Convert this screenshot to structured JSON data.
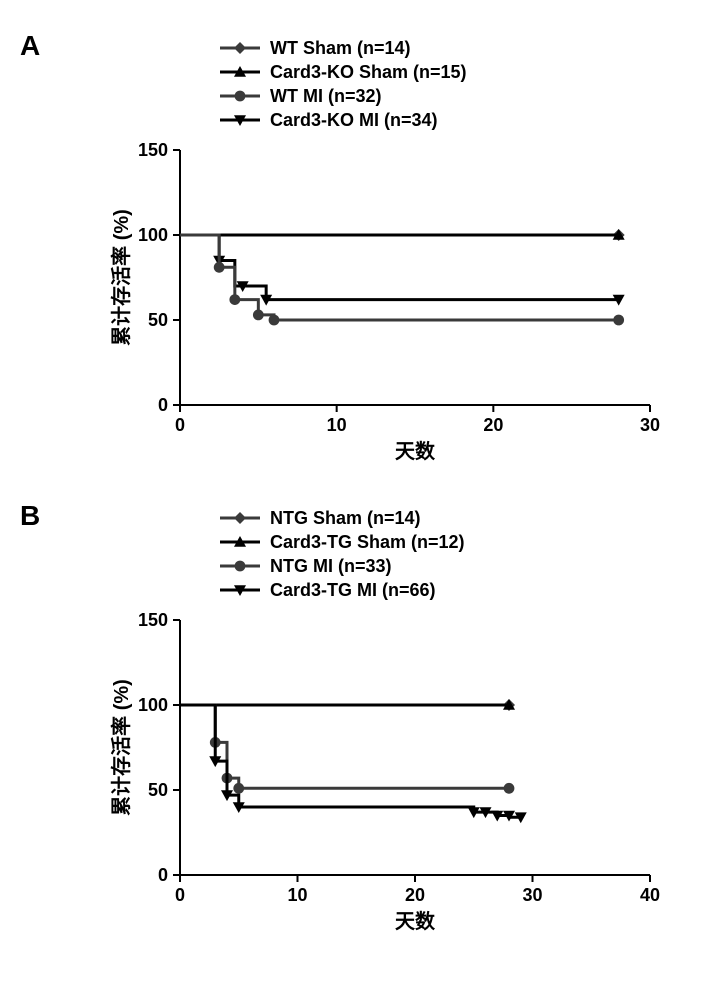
{
  "panelA": {
    "label": "A",
    "type": "survival-curve",
    "background_color": "#ffffff",
    "axis_color": "#000000",
    "axis_width": 2,
    "line_width": 3,
    "marker_size": 6,
    "tick_fontsize": 18,
    "axis_label_fontsize": 20,
    "legend_fontsize": 18,
    "xlabel": "天数",
    "ylabel": "累计存活率 (%)",
    "xlim": [
      0,
      30
    ],
    "ylim": [
      0,
      150
    ],
    "xticks": [
      0,
      10,
      20,
      30
    ],
    "yticks": [
      0,
      50,
      100,
      150
    ],
    "legend_items": [
      {
        "label": "WT Sham (n=14)",
        "marker": "diamond",
        "color": "#3a3a3a"
      },
      {
        "label": "Card3-KO Sham (n=15)",
        "marker": "triangle-up",
        "color": "#000000"
      },
      {
        "label": "WT MI (n=32)",
        "marker": "circle",
        "color": "#3a3a3a"
      },
      {
        "label": "Card3-KO MI (n=34)",
        "marker": "triangle-down",
        "color": "#000000"
      }
    ],
    "series": [
      {
        "name": "WT Sham",
        "color": "#808080",
        "marker": "diamond",
        "marker_color": "#3a3a3a",
        "steps": [
          [
            0,
            100
          ],
          [
            28,
            100
          ]
        ],
        "markers_at": [
          [
            28,
            100
          ]
        ]
      },
      {
        "name": "Card3-KO Sham",
        "color": "#000000",
        "marker": "triangle-up",
        "marker_color": "#000000",
        "steps": [
          [
            0,
            100
          ],
          [
            28,
            100
          ]
        ],
        "markers_at": [
          [
            28,
            100
          ]
        ]
      },
      {
        "name": "Card3-KO MI",
        "color": "#000000",
        "marker": "triangle-down",
        "marker_color": "#000000",
        "steps": [
          [
            0,
            100
          ],
          [
            2.5,
            100
          ],
          [
            2.5,
            85
          ],
          [
            3.5,
            85
          ],
          [
            3.5,
            70
          ],
          [
            5.5,
            70
          ],
          [
            5.5,
            62
          ],
          [
            28,
            62
          ]
        ],
        "markers_at": [
          [
            2.5,
            85
          ],
          [
            4,
            70
          ],
          [
            5.5,
            62
          ],
          [
            28,
            62
          ]
        ]
      },
      {
        "name": "WT MI",
        "color": "#3a3a3a",
        "marker": "circle",
        "marker_color": "#3a3a3a",
        "steps": [
          [
            0,
            100
          ],
          [
            2.5,
            100
          ],
          [
            2.5,
            81
          ],
          [
            3.5,
            81
          ],
          [
            3.5,
            62
          ],
          [
            5,
            62
          ],
          [
            5,
            53
          ],
          [
            6,
            53
          ],
          [
            6,
            50
          ],
          [
            28,
            50
          ]
        ],
        "markers_at": [
          [
            2.5,
            81
          ],
          [
            3.5,
            62
          ],
          [
            5,
            53
          ],
          [
            6,
            50
          ],
          [
            28,
            50
          ]
        ]
      }
    ]
  },
  "panelB": {
    "label": "B",
    "type": "survival-curve",
    "background_color": "#ffffff",
    "axis_color": "#000000",
    "axis_width": 2,
    "line_width": 3,
    "marker_size": 6,
    "tick_fontsize": 18,
    "axis_label_fontsize": 20,
    "legend_fontsize": 18,
    "xlabel": "天数",
    "ylabel": "累计存活率 (%)",
    "xlim": [
      0,
      40
    ],
    "ylim": [
      0,
      150
    ],
    "xticks": [
      0,
      10,
      20,
      30,
      40
    ],
    "yticks": [
      0,
      50,
      100,
      150
    ],
    "legend_items": [
      {
        "label": "NTG Sham (n=14)",
        "marker": "diamond",
        "color": "#3a3a3a"
      },
      {
        "label": "Card3-TG Sham (n=12)",
        "marker": "triangle-up",
        "color": "#000000"
      },
      {
        "label": "NTG MI (n=33)",
        "marker": "circle",
        "color": "#3a3a3a"
      },
      {
        "label": "Card3-TG MI (n=66)",
        "marker": "triangle-down",
        "color": "#000000"
      }
    ],
    "series": [
      {
        "name": "NTG Sham",
        "color": "#808080",
        "marker": "diamond",
        "marker_color": "#3a3a3a",
        "steps": [
          [
            0,
            100
          ],
          [
            28,
            100
          ]
        ],
        "markers_at": [
          [
            28,
            100
          ]
        ]
      },
      {
        "name": "Card3-TG Sham",
        "color": "#000000",
        "marker": "triangle-up",
        "marker_color": "#000000",
        "steps": [
          [
            0,
            100
          ],
          [
            28,
            100
          ]
        ],
        "markers_at": [
          [
            28,
            100
          ]
        ]
      },
      {
        "name": "NTG MI",
        "color": "#3a3a3a",
        "marker": "circle",
        "marker_color": "#3a3a3a",
        "steps": [
          [
            0,
            100
          ],
          [
            3,
            100
          ],
          [
            3,
            78
          ],
          [
            4,
            78
          ],
          [
            4,
            57
          ],
          [
            5,
            57
          ],
          [
            5,
            51
          ],
          [
            28,
            51
          ]
        ],
        "markers_at": [
          [
            3,
            78
          ],
          [
            4,
            57
          ],
          [
            5,
            51
          ],
          [
            28,
            51
          ]
        ]
      },
      {
        "name": "Card3-TG MI",
        "color": "#000000",
        "marker": "triangle-down",
        "marker_color": "#000000",
        "steps": [
          [
            0,
            100
          ],
          [
            3,
            100
          ],
          [
            3,
            67
          ],
          [
            4,
            67
          ],
          [
            4,
            47
          ],
          [
            5,
            47
          ],
          [
            5,
            40
          ],
          [
            25,
            40
          ],
          [
            25,
            37
          ],
          [
            27,
            37
          ],
          [
            27,
            35
          ],
          [
            28,
            35
          ],
          [
            28,
            34
          ],
          [
            29,
            34
          ]
        ],
        "markers_at": [
          [
            3,
            67
          ],
          [
            4,
            47
          ],
          [
            5,
            40
          ],
          [
            25,
            37
          ],
          [
            26,
            37
          ],
          [
            27,
            35
          ],
          [
            28,
            35
          ],
          [
            29,
            34
          ]
        ]
      }
    ]
  }
}
